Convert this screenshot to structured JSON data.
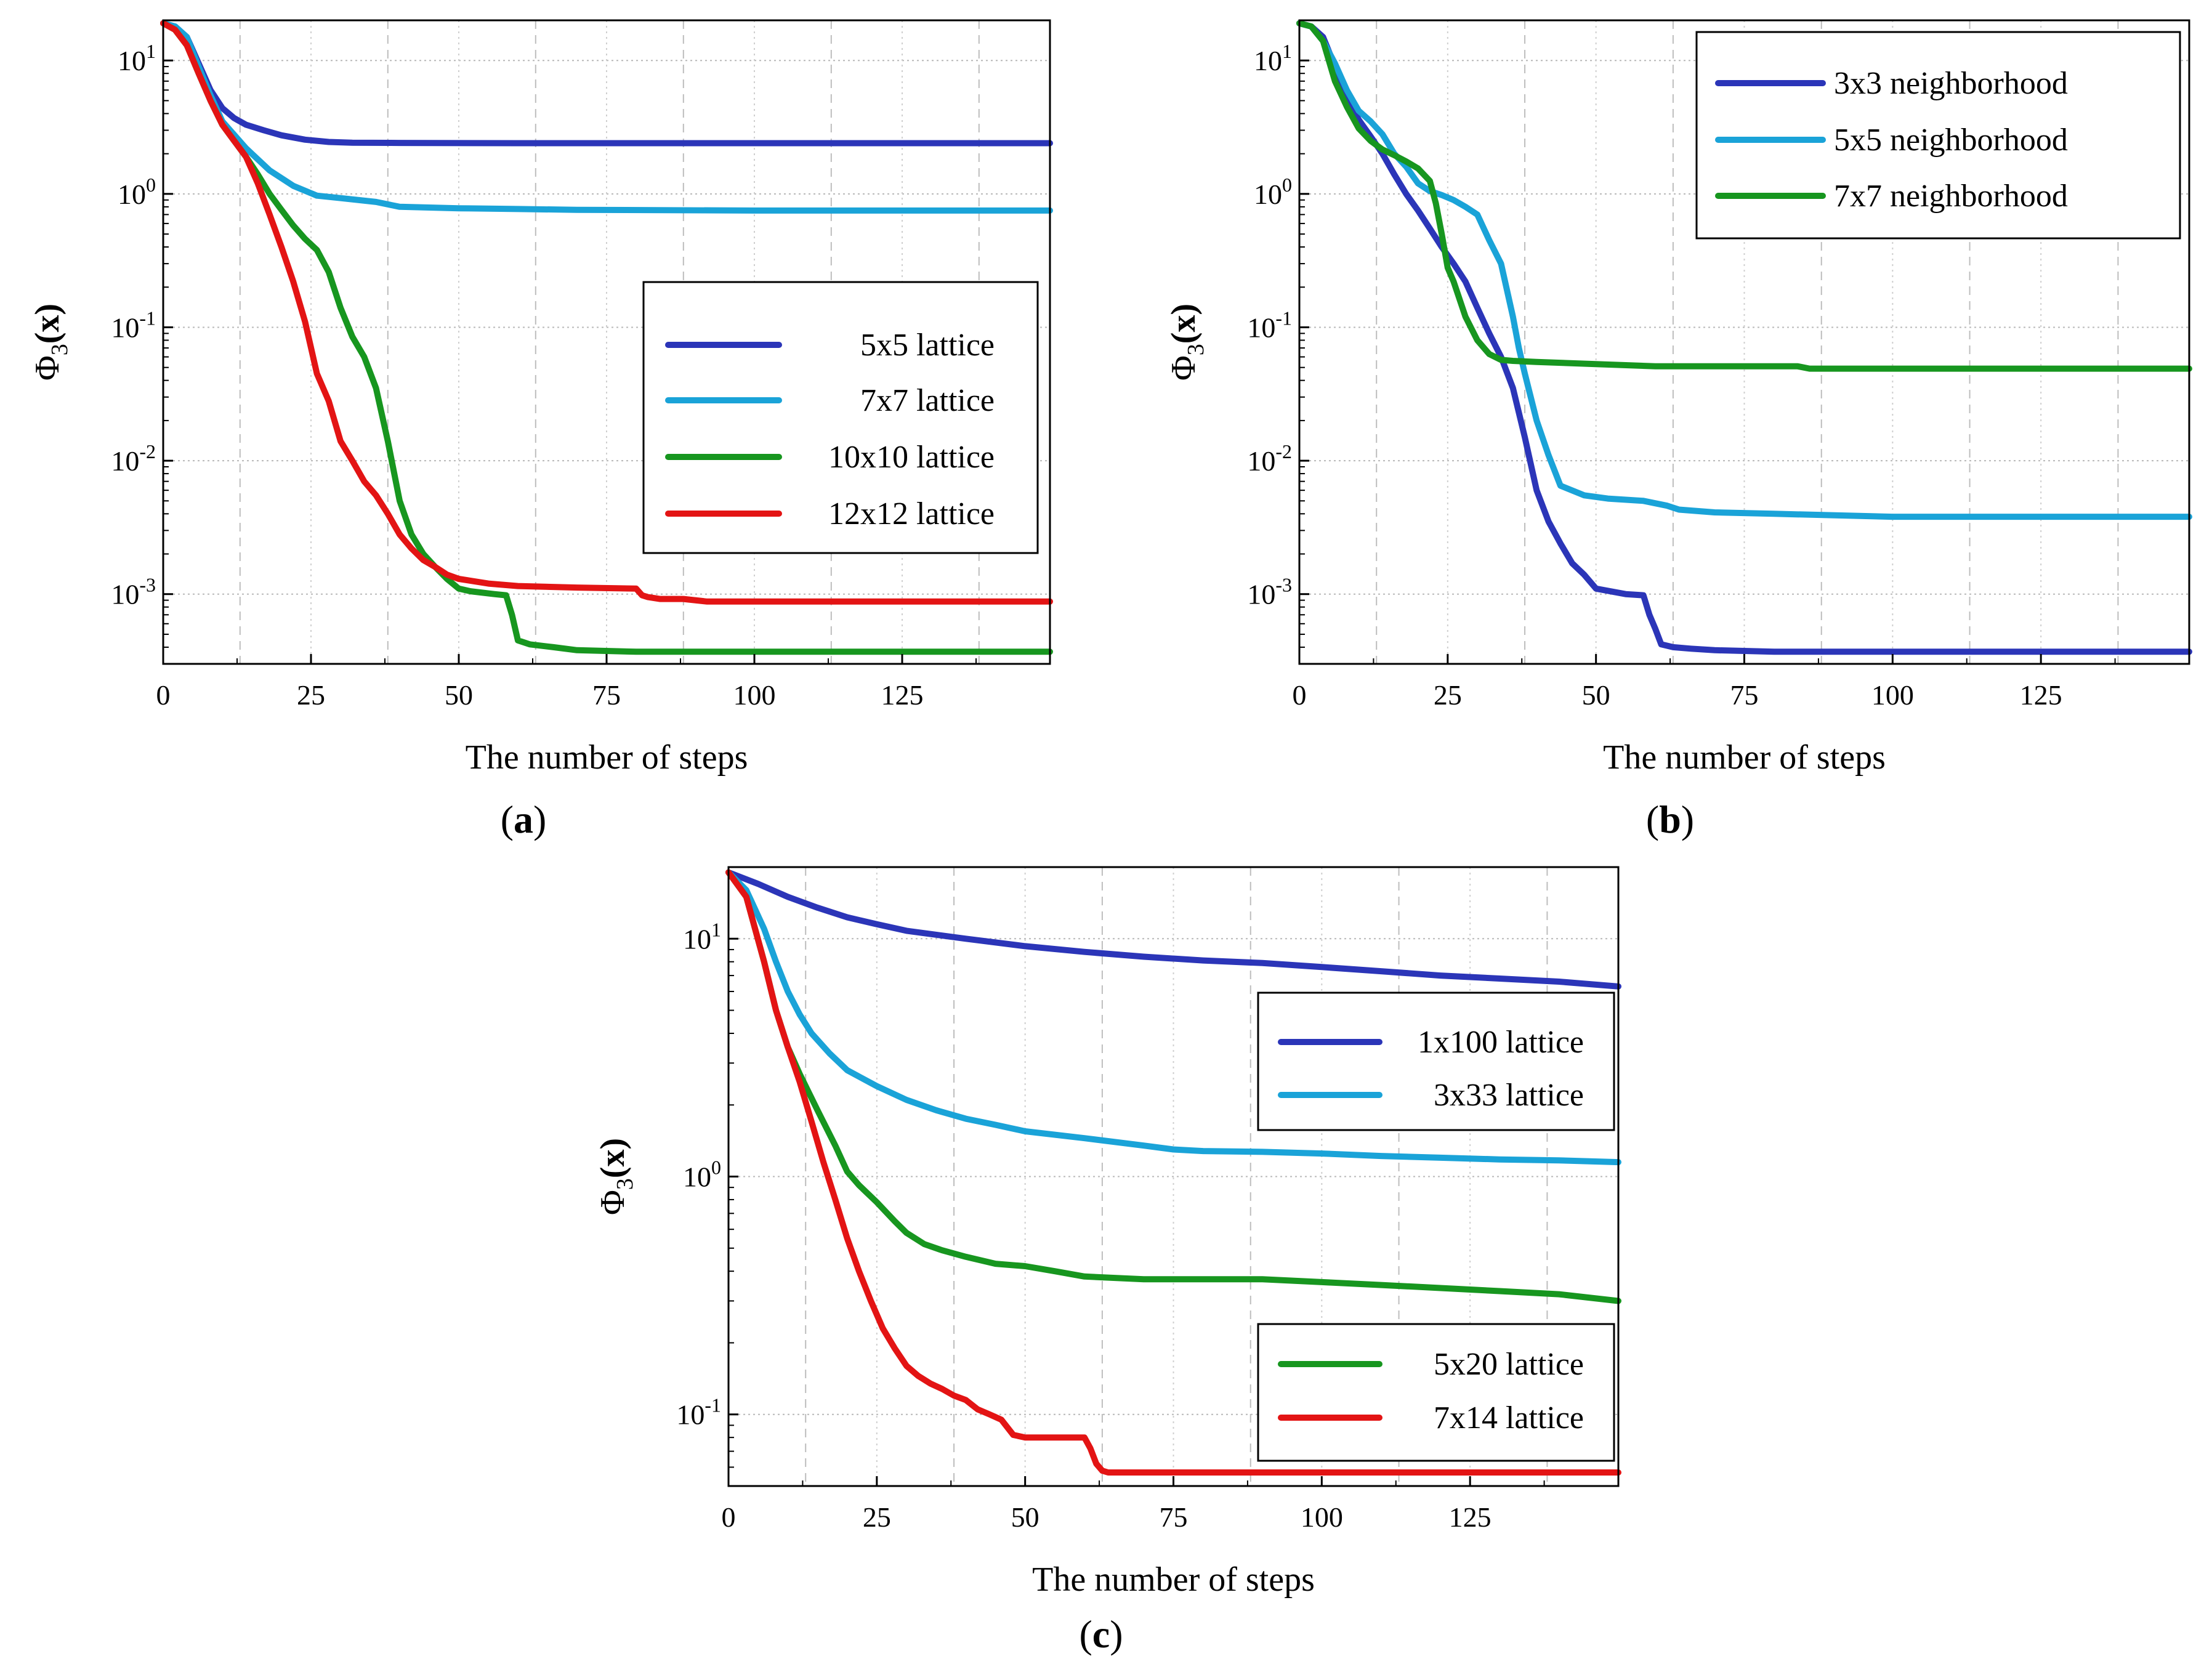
{
  "chart_data": [
    {
      "id": "a",
      "type": "line",
      "yscale": "log",
      "caption_letter": "a",
      "xlabel": "The number of steps",
      "ylabel": "Φ3(x)",
      "xlim": [
        0,
        150
      ],
      "ylim": [
        0.0003,
        20
      ],
      "xticks": [
        0,
        25,
        50,
        75,
        100,
        125
      ],
      "yticks": [
        {
          "value": 10,
          "base": "10",
          "exp": "1"
        },
        {
          "value": 1,
          "base": "10",
          "exp": "0"
        },
        {
          "value": 0.1,
          "base": "10",
          "exp": "-1"
        },
        {
          "value": 0.01,
          "base": "10",
          "exp": "-2"
        },
        {
          "value": 0.001,
          "base": "10",
          "exp": "-3"
        }
      ],
      "vgrid_dashed": [
        13,
        38,
        63,
        88,
        113,
        138
      ],
      "legend_position": "center-right",
      "series": [
        {
          "name": "5x5 lattice",
          "color": "#2b35b8",
          "x": [
            0,
            2,
            4,
            6,
            8,
            10,
            12,
            14,
            17,
            20,
            24,
            28,
            32,
            40,
            60,
            100,
            150
          ],
          "y": [
            19,
            18,
            15,
            9.5,
            6,
            4.4,
            3.7,
            3.3,
            3.0,
            2.75,
            2.55,
            2.45,
            2.42,
            2.41,
            2.4,
            2.4,
            2.4
          ]
        },
        {
          "name": "7x7 lattice",
          "color": "#1aa3d8",
          "x": [
            0,
            2,
            4,
            6,
            8,
            10,
            14,
            18,
            22,
            26,
            30,
            36,
            40,
            50,
            60,
            70,
            100,
            150
          ],
          "y": [
            19,
            18,
            15,
            9,
            5.5,
            3.5,
            2.2,
            1.5,
            1.15,
            0.97,
            0.93,
            0.87,
            0.8,
            0.78,
            0.77,
            0.76,
            0.75,
            0.75
          ]
        },
        {
          "name": "10x10 lattice",
          "color": "#17961f",
          "x": [
            0,
            2,
            4,
            6,
            8,
            10,
            12,
            14,
            16,
            18,
            20,
            22,
            24,
            26,
            28,
            30,
            32,
            34,
            36,
            38,
            40,
            42,
            44,
            46,
            48,
            50,
            52,
            56,
            58,
            59,
            60,
            62,
            66,
            70,
            80,
            100,
            150
          ],
          "y": [
            19,
            17,
            13,
            8,
            5,
            3.3,
            2.5,
            1.9,
            1.4,
            1.0,
            0.76,
            0.58,
            0.46,
            0.38,
            0.26,
            0.14,
            0.085,
            0.06,
            0.035,
            0.014,
            0.005,
            0.0028,
            0.002,
            0.0016,
            0.0013,
            0.0011,
            0.00105,
            0.001,
            0.00098,
            0.0007,
            0.00045,
            0.00042,
            0.0004,
            0.00038,
            0.00037,
            0.00037,
            0.00037
          ]
        },
        {
          "name": "12x12 lattice",
          "color": "#e31414",
          "x": [
            0,
            2,
            4,
            6,
            8,
            10,
            12,
            14,
            16,
            18,
            20,
            22,
            24,
            26,
            28,
            30,
            32,
            34,
            36,
            38,
            40,
            42,
            44,
            46,
            48,
            50,
            55,
            60,
            70,
            80,
            81,
            82,
            84,
            88,
            92,
            100,
            150
          ],
          "y": [
            19,
            17,
            13,
            8,
            5,
            3.3,
            2.5,
            1.9,
            1.2,
            0.7,
            0.4,
            0.22,
            0.11,
            0.045,
            0.028,
            0.014,
            0.01,
            0.007,
            0.0055,
            0.004,
            0.0028,
            0.0022,
            0.0018,
            0.0016,
            0.0014,
            0.0013,
            0.0012,
            0.00115,
            0.00112,
            0.0011,
            0.00098,
            0.00095,
            0.00092,
            0.00092,
            0.00088,
            0.00088,
            0.00088
          ]
        }
      ]
    },
    {
      "id": "b",
      "type": "line",
      "yscale": "log",
      "caption_letter": "b",
      "xlabel": "The number of steps",
      "ylabel": "Φ3(x)",
      "xlim": [
        0,
        150
      ],
      "ylim": [
        0.0003,
        20
      ],
      "xticks": [
        0,
        25,
        50,
        75,
        100,
        125
      ],
      "yticks": [
        {
          "value": 10,
          "base": "10",
          "exp": "1"
        },
        {
          "value": 1,
          "base": "10",
          "exp": "0"
        },
        {
          "value": 0.1,
          "base": "10",
          "exp": "-1"
        },
        {
          "value": 0.01,
          "base": "10",
          "exp": "-2"
        },
        {
          "value": 0.001,
          "base": "10",
          "exp": "-3"
        }
      ],
      "vgrid_dashed": [
        13,
        38,
        63,
        88,
        113,
        138
      ],
      "legend_position": "top-right",
      "series": [
        {
          "name": "3x3 neighborhood",
          "color": "#2b35b8",
          "x": [
            0,
            2,
            4,
            6,
            8,
            10,
            12,
            14,
            16,
            18,
            20,
            22,
            24,
            26,
            28,
            30,
            32,
            34,
            36,
            38,
            40,
            42,
            44,
            46,
            48,
            50,
            55,
            58,
            59,
            60,
            61,
            63,
            66,
            70,
            80,
            100,
            150
          ],
          "y": [
            19,
            18,
            15,
            9,
            5.5,
            3.6,
            2.7,
            2.0,
            1.4,
            1.0,
            0.75,
            0.55,
            0.4,
            0.3,
            0.22,
            0.14,
            0.09,
            0.06,
            0.035,
            0.015,
            0.006,
            0.0035,
            0.0024,
            0.0017,
            0.0014,
            0.0011,
            0.001,
            0.00098,
            0.0007,
            0.00055,
            0.00042,
            0.0004,
            0.00039,
            0.00038,
            0.00037,
            0.00037,
            0.00037
          ]
        },
        {
          "name": "5x5 neighborhood",
          "color": "#1aa3d8",
          "x": [
            0,
            2,
            4,
            6,
            8,
            10,
            12,
            14,
            16,
            18,
            20,
            22,
            24,
            26,
            28,
            30,
            32,
            34,
            36,
            37,
            38,
            40,
            42,
            44,
            48,
            52,
            58,
            62,
            64,
            70,
            80,
            100,
            150
          ],
          "y": [
            19,
            18,
            14,
            9.5,
            6,
            4.2,
            3.5,
            2.8,
            2.0,
            1.6,
            1.2,
            1.05,
            0.98,
            0.9,
            0.8,
            0.7,
            0.45,
            0.3,
            0.12,
            0.07,
            0.045,
            0.02,
            0.011,
            0.0065,
            0.0055,
            0.0052,
            0.005,
            0.0046,
            0.0043,
            0.0041,
            0.004,
            0.0038,
            0.0038
          ]
        },
        {
          "name": "7x7 neighborhood",
          "color": "#17961f",
          "x": [
            0,
            2,
            4,
            6,
            8,
            10,
            12,
            14,
            16,
            18,
            20,
            22,
            23,
            24,
            25,
            26,
            28,
            30,
            32,
            34,
            36,
            40,
            50,
            60,
            70,
            84,
            86,
            90,
            100,
            150
          ],
          "y": [
            19,
            18,
            14,
            7,
            4.5,
            3.1,
            2.5,
            2.15,
            1.95,
            1.75,
            1.55,
            1.25,
            0.85,
            0.5,
            0.28,
            0.22,
            0.12,
            0.08,
            0.063,
            0.057,
            0.056,
            0.055,
            0.053,
            0.051,
            0.051,
            0.051,
            0.049,
            0.049,
            0.049,
            0.049
          ]
        }
      ]
    },
    {
      "id": "c",
      "type": "line",
      "yscale": "log",
      "caption_letter": "c",
      "xlabel": "The number of steps",
      "ylabel": "Φ3(x)",
      "xlim": [
        0,
        150
      ],
      "ylim": [
        0.05,
        20
      ],
      "xticks": [
        0,
        25,
        50,
        75,
        100,
        125
      ],
      "yticks": [
        {
          "value": 10,
          "base": "10",
          "exp": "1"
        },
        {
          "value": 1,
          "base": "10",
          "exp": "0"
        },
        {
          "value": 0.1,
          "base": "10",
          "exp": "-1"
        }
      ],
      "vgrid_dashed": [
        13,
        38,
        63,
        88,
        113,
        138
      ],
      "legend_groups": [
        {
          "position": "middle-right",
          "series": [
            0,
            1
          ]
        },
        {
          "position": "bottom-right",
          "series": [
            2,
            3
          ]
        }
      ],
      "series": [
        {
          "name": "1x100 lattice",
          "color": "#2b35b8",
          "x": [
            0,
            5,
            10,
            15,
            20,
            25,
            30,
            40,
            50,
            60,
            70,
            80,
            90,
            100,
            110,
            120,
            130,
            140,
            150
          ],
          "y": [
            19,
            17,
            15,
            13.5,
            12.3,
            11.5,
            10.8,
            10,
            9.3,
            8.8,
            8.4,
            8.1,
            7.9,
            7.6,
            7.3,
            7.0,
            6.8,
            6.6,
            6.3
          ]
        },
        {
          "name": "3x33 lattice",
          "color": "#1aa3d8",
          "x": [
            0,
            3,
            6,
            8,
            10,
            12,
            14,
            17,
            20,
            25,
            30,
            35,
            40,
            45,
            50,
            60,
            70,
            75,
            80,
            90,
            100,
            110,
            120,
            130,
            140,
            150
          ],
          "y": [
            19,
            16,
            11,
            8,
            6,
            4.8,
            4.0,
            3.3,
            2.8,
            2.4,
            2.1,
            1.9,
            1.75,
            1.65,
            1.55,
            1.45,
            1.35,
            1.3,
            1.28,
            1.27,
            1.25,
            1.22,
            1.2,
            1.18,
            1.17,
            1.15
          ]
        },
        {
          "name": "5x20 lattice",
          "color": "#17961f",
          "x": [
            0,
            3,
            6,
            8,
            10,
            12,
            15,
            18,
            20,
            22,
            25,
            28,
            30,
            33,
            36,
            40,
            45,
            50,
            55,
            60,
            70,
            80,
            90,
            100,
            110,
            120,
            130,
            140,
            150
          ],
          "y": [
            19,
            15,
            8,
            5,
            3.5,
            2.7,
            1.9,
            1.35,
            1.05,
            0.92,
            0.78,
            0.65,
            0.58,
            0.52,
            0.49,
            0.46,
            0.43,
            0.42,
            0.4,
            0.38,
            0.37,
            0.37,
            0.37,
            0.36,
            0.35,
            0.34,
            0.33,
            0.32,
            0.3
          ]
        },
        {
          "name": "7x14 lattice",
          "color": "#e31414",
          "x": [
            0,
            3,
            6,
            8,
            10,
            12,
            14,
            16,
            18,
            20,
            22,
            24,
            26,
            28,
            30,
            32,
            34,
            36,
            38,
            40,
            42,
            44,
            46,
            48,
            50,
            55,
            60,
            61,
            62,
            63,
            64,
            70,
            80,
            100,
            150
          ],
          "y": [
            19,
            15,
            8,
            5,
            3.5,
            2.5,
            1.7,
            1.15,
            0.8,
            0.55,
            0.4,
            0.3,
            0.23,
            0.19,
            0.16,
            0.145,
            0.135,
            0.128,
            0.12,
            0.115,
            0.105,
            0.1,
            0.095,
            0.082,
            0.08,
            0.08,
            0.08,
            0.072,
            0.062,
            0.058,
            0.057,
            0.057,
            0.057,
            0.057,
            0.057
          ]
        }
      ]
    }
  ]
}
